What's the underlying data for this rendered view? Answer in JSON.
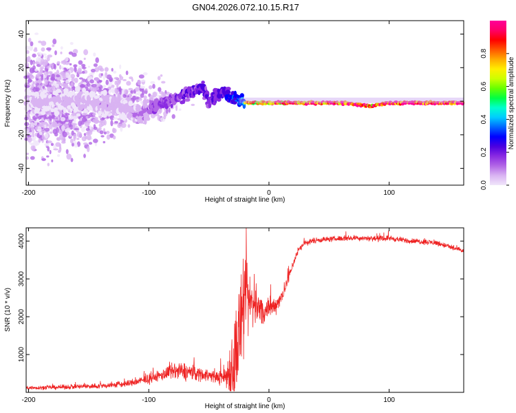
{
  "title": "GN04.2026.072.10.15.R17",
  "chart_data": [
    {
      "type": "heatmap",
      "title": "GN04.2026.072.10.15.R17",
      "xlabel": "Height of straight line (km)",
      "ylabel": "Frequency (Hz)",
      "xlim": [
        -202,
        162
      ],
      "ylim": [
        -50,
        48
      ],
      "x_ticks": [
        -200,
        -100,
        0,
        100
      ],
      "y_ticks": [
        -40,
        -20,
        0,
        20,
        40
      ],
      "colorbar": {
        "label": "Normalized spectral amplitude",
        "range": [
          0,
          1
        ],
        "ticks": [
          0.0,
          0.2,
          0.4,
          0.6,
          0.8
        ],
        "colors": [
          "#f0e6fa",
          "#d9b3f2",
          "#b266e6",
          "#8a2be2",
          "#4b00e0",
          "#0000ff",
          "#0066ff",
          "#00ccff",
          "#00ffcc",
          "#00ff44",
          "#66ff00",
          "#ccff00",
          "#ffee00",
          "#ffaa00",
          "#ff5500",
          "#ff0000",
          "#ff0066",
          "#ff0099"
        ]
      },
      "ridge": [
        {
          "x": -200,
          "f": 0,
          "amp": 0.15
        },
        {
          "x": -150,
          "f": 0,
          "amp": 0.18
        },
        {
          "x": -120,
          "f": -4,
          "amp": 0.2
        },
        {
          "x": -110,
          "f": -8,
          "amp": 0.22
        },
        {
          "x": -100,
          "f": -5,
          "amp": 0.3
        },
        {
          "x": -85,
          "f": 0,
          "amp": 0.35
        },
        {
          "x": -70,
          "f": 4,
          "amp": 0.4
        },
        {
          "x": -55,
          "f": 8,
          "amp": 0.45
        },
        {
          "x": -50,
          "f": 0,
          "amp": 0.4
        },
        {
          "x": -40,
          "f": 6,
          "amp": 0.45
        },
        {
          "x": -30,
          "f": 2,
          "amp": 0.55
        },
        {
          "x": -20,
          "f": -1,
          "amp": 0.7
        },
        {
          "x": 0,
          "f": -1,
          "amp": 0.8
        },
        {
          "x": 20,
          "f": -1,
          "amp": 0.85
        },
        {
          "x": 60,
          "f": -1,
          "amp": 0.9
        },
        {
          "x": 85,
          "f": -3,
          "amp": 0.85
        },
        {
          "x": 100,
          "f": -1,
          "amp": 0.95
        },
        {
          "x": 160,
          "f": -1,
          "amp": 0.95
        }
      ]
    },
    {
      "type": "line",
      "xlabel": "Height of straight line (km)",
      "ylabel": "SNR (10 * v/v)",
      "xlim": [
        -202,
        162
      ],
      "ylim": [
        0,
        4350
      ],
      "x_ticks": [
        -200,
        -100,
        0,
        100
      ],
      "y_ticks": [
        1000,
        2000,
        3000,
        4000
      ],
      "color": "#ee2222",
      "series": [
        {
          "name": "SNR",
          "x": [
            -200,
            -180,
            -160,
            -140,
            -120,
            -110,
            -100,
            -90,
            -80,
            -70,
            -60,
            -50,
            -45,
            -40,
            -35,
            -30,
            -25,
            -20,
            -15,
            -10,
            -5,
            0,
            5,
            10,
            15,
            20,
            25,
            30,
            40,
            50,
            60,
            70,
            80,
            90,
            100,
            110,
            120,
            130,
            140,
            150,
            160
          ],
          "values": [
            120,
            130,
            150,
            170,
            220,
            280,
            350,
            450,
            550,
            550,
            500,
            450,
            400,
            400,
            450,
            700,
            1500,
            2300,
            2400,
            2300,
            2100,
            2200,
            2300,
            2500,
            2900,
            3400,
            3800,
            3950,
            4030,
            4050,
            4070,
            4080,
            4080,
            4060,
            4080,
            4030,
            4000,
            3980,
            3950,
            3850,
            3750
          ],
          "noise": [
            60,
            70,
            80,
            90,
            110,
            130,
            150,
            180,
            280,
            300,
            250,
            200,
            180,
            250,
            500,
            1500,
            1800,
            1400,
            900,
            600,
            450,
            350,
            300,
            250,
            200,
            150,
            120,
            100,
            90,
            90,
            90,
            90,
            90,
            90,
            90,
            90,
            90,
            90,
            90,
            90,
            90
          ]
        }
      ]
    }
  ]
}
